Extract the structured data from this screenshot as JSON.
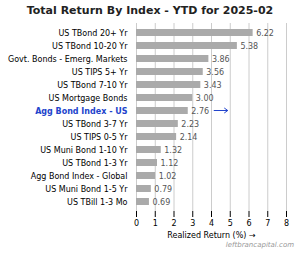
{
  "chart_data": {
    "type": "bar",
    "orientation": "horizontal",
    "title": "Total Return By Index - YTD for 2025-02",
    "xlabel": "Realized Return (%)",
    "categories": [
      "US TBill 1-3 Mo",
      "US Muni Bond 1-5 Yr",
      "Agg Bond Index - Global",
      "US TBond 1-3 Yr",
      "US Muni Bond 1-10 Yr",
      "US TIPS 0-5 Yr",
      "US TBond 3-7 Yr",
      "Agg Bond Index - US",
      "US Mortgage Bonds",
      "US TBond 7-10 Yr",
      "US TIPS 5+ Yr",
      "Govt. Bonds - Emerg. Markets",
      "US TBond 10-20 Yr",
      "US TBond 20+ Yr"
    ],
    "values": [
      0.69,
      0.79,
      1.02,
      1.12,
      1.32,
      2.14,
      2.23,
      2.76,
      3.0,
      3.43,
      3.56,
      3.86,
      5.38,
      6.22
    ],
    "value_labels": [
      "0.69",
      "0.79",
      "1.02",
      "1.12",
      "1.32",
      "2.14",
      "2.23",
      "2.76",
      "3.00",
      "3.43",
      "3.56",
      "3.86",
      "5.38",
      "6.22"
    ],
    "data_labels": true,
    "color": "#aaaaaa",
    "xlim": [
      0,
      8
    ],
    "xticks": [
      0,
      1,
      2,
      3,
      4,
      5,
      6,
      7,
      8
    ],
    "grid": true,
    "annotations": [
      {
        "category": "Agg Bond Index - US",
        "color": "#2244cc"
      }
    ],
    "caption": "leftbrancapital.com"
  }
}
